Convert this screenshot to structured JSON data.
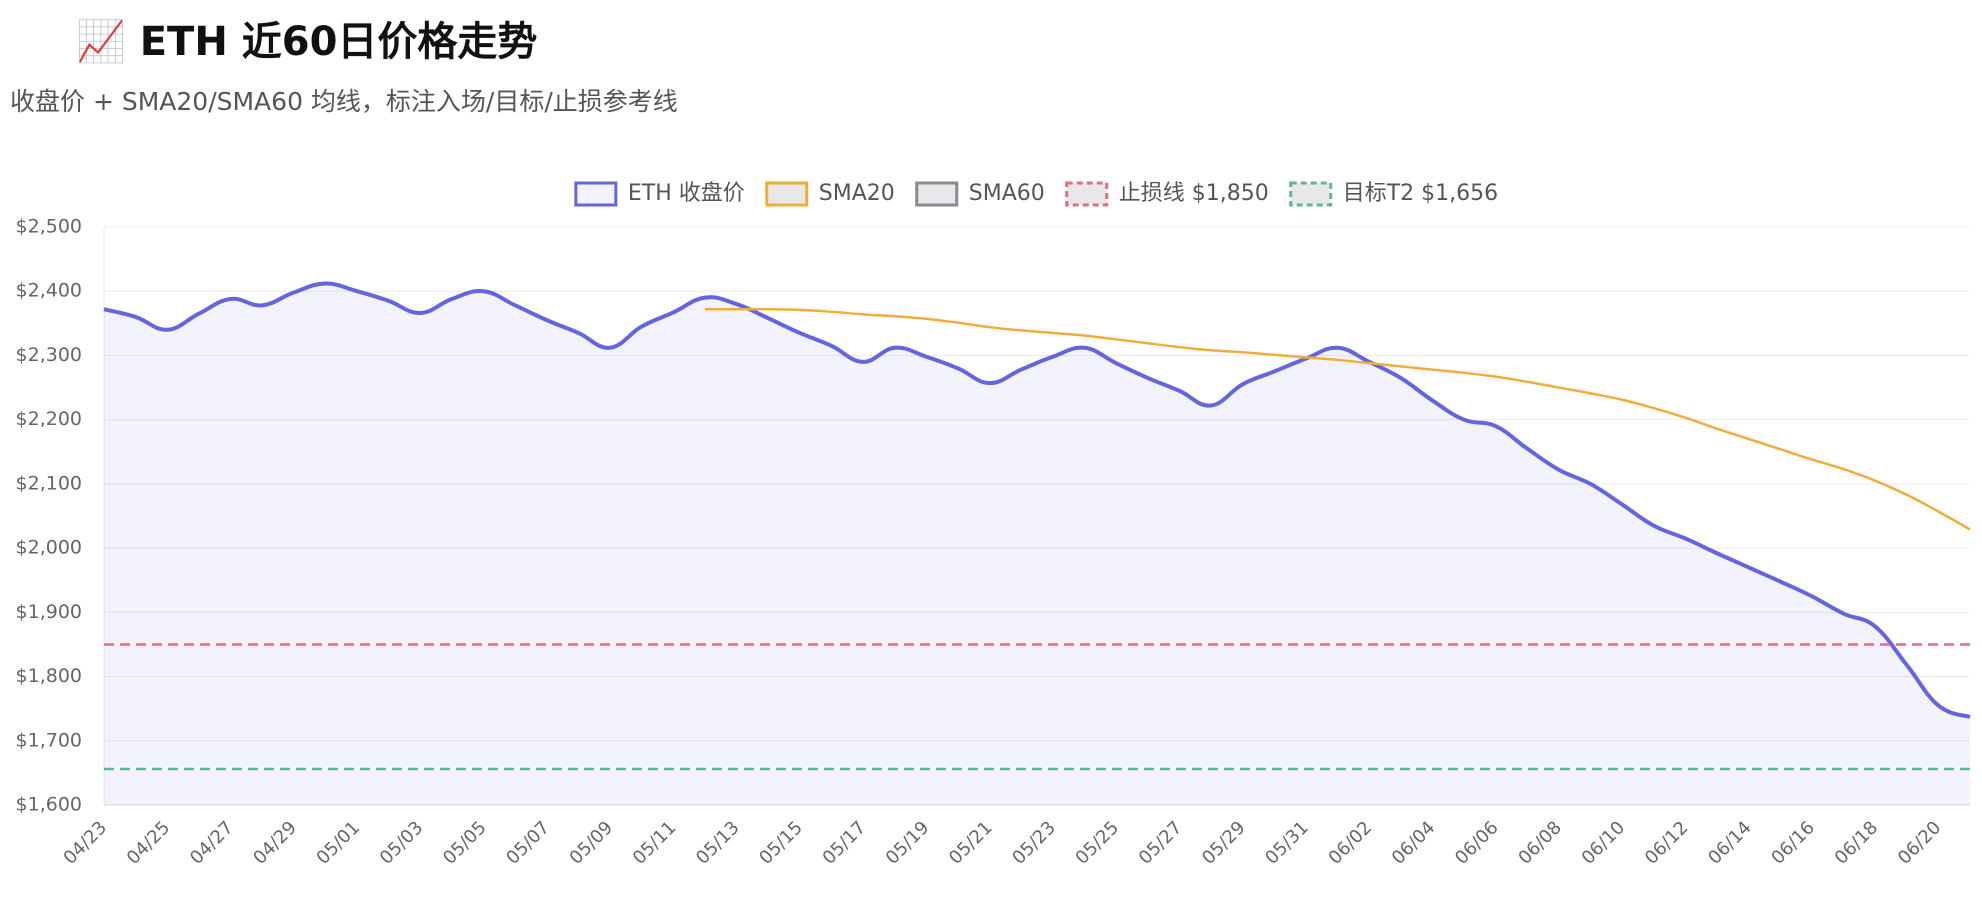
{
  "chart_data": {
    "type": "line",
    "title": "📈 ETH 近60日价格走势",
    "subtitle": "收盘价 + SMA20/SMA60 均线，标注入场/目标/止损参考线",
    "categories": [
      "04/23",
      null,
      "04/25",
      null,
      "04/27",
      null,
      "04/29",
      null,
      "05/01",
      null,
      "05/03",
      null,
      "05/05",
      null,
      "05/07",
      null,
      "05/09",
      null,
      "05/11",
      null,
      "05/13",
      null,
      "05/15",
      null,
      "05/17",
      null,
      "05/19",
      null,
      "05/21",
      null,
      "05/23",
      null,
      "05/25",
      null,
      "05/27",
      null,
      "05/29",
      null,
      "05/31",
      null,
      "06/02",
      null,
      "06/04",
      null,
      "06/06",
      null,
      "06/08",
      null,
      "06/10",
      null,
      "06/12",
      null,
      "06/14",
      null,
      "06/16",
      null,
      "06/18",
      null,
      "06/20",
      null
    ],
    "series": [
      {
        "name": "ETH 收盘价",
        "color": "#6366e0",
        "fill": "rgba(99,102,241,0.08)",
        "values": [
          2372,
          2360,
          2340,
          2365,
          2388,
          2378,
          2398,
          2412,
          2400,
          2385,
          2366,
          2388,
          2400,
          2378,
          2355,
          2335,
          2312,
          2345,
          2367,
          2390,
          2380,
          2358,
          2335,
          2315,
          2290,
          2312,
          2298,
          2280,
          2257,
          2278,
          2298,
          2312,
          2288,
          2265,
          2245,
          2222,
          2255,
          2275,
          2295,
          2312,
          2290,
          2265,
          2230,
          2200,
          2190,
          2155,
          2122,
          2100,
          2068,
          2035,
          2015,
          1992,
          1970,
          1948,
          1925,
          1898,
          1878,
          1818,
          1755,
          1737
        ]
      },
      {
        "name": "SMA20",
        "color": "#f0ad3c",
        "values": [
          null,
          null,
          null,
          null,
          null,
          null,
          null,
          null,
          null,
          null,
          null,
          null,
          null,
          null,
          null,
          null,
          null,
          null,
          null,
          2372,
          2372,
          2372,
          2371,
          2368,
          2364,
          2361,
          2357,
          2351,
          2344,
          2339,
          2335,
          2331,
          2325,
          2319,
          2313,
          2308,
          2305,
          2301,
          2297,
          2293,
          2288,
          2283,
          2278,
          2273,
          2267,
          2259,
          2250,
          2241,
          2231,
          2218,
          2203,
          2186,
          2170,
          2154,
          2138,
          2123,
          2105,
          2083,
          2057,
          2029
        ]
      },
      {
        "name": "SMA60",
        "color": "#8a8a90",
        "values": [
          null,
          null,
          null,
          null,
          null,
          null,
          null,
          null,
          null,
          null,
          null,
          null,
          null,
          null,
          null,
          null,
          null,
          null,
          null,
          null,
          null,
          null,
          null,
          null,
          null,
          null,
          null,
          null,
          null,
          null,
          null,
          null,
          null,
          null,
          null,
          null,
          null,
          null,
          null,
          null,
          null,
          null,
          null,
          null,
          null,
          null,
          null,
          null,
          null,
          null,
          null,
          null,
          null,
          null,
          null,
          null,
          null,
          null,
          null,
          null
        ]
      },
      {
        "name": "止损线 $1,850",
        "color": "#e0707e",
        "dashed": true,
        "value": 1850
      },
      {
        "name": "目标T2 $1,656",
        "color": "#5fb88e",
        "dashed": true,
        "value": 1656
      }
    ],
    "ylim": [
      1600,
      2500
    ],
    "yticks": [
      {
        "value": 1600,
        "label": "$1,600"
      },
      {
        "value": 1700,
        "label": "$1,700"
      },
      {
        "value": 1800,
        "label": "$1,800"
      },
      {
        "value": 1900,
        "label": "$1,900"
      },
      {
        "value": 2000,
        "label": "$2,000"
      },
      {
        "value": 2100,
        "label": "$2,100"
      },
      {
        "value": 2200,
        "label": "$2,200"
      },
      {
        "value": 2300,
        "label": "$2,300"
      },
      {
        "value": 2400,
        "label": "$2,400"
      },
      {
        "value": 2500,
        "label": "$2,500"
      }
    ],
    "grid": true,
    "legend": "top"
  }
}
